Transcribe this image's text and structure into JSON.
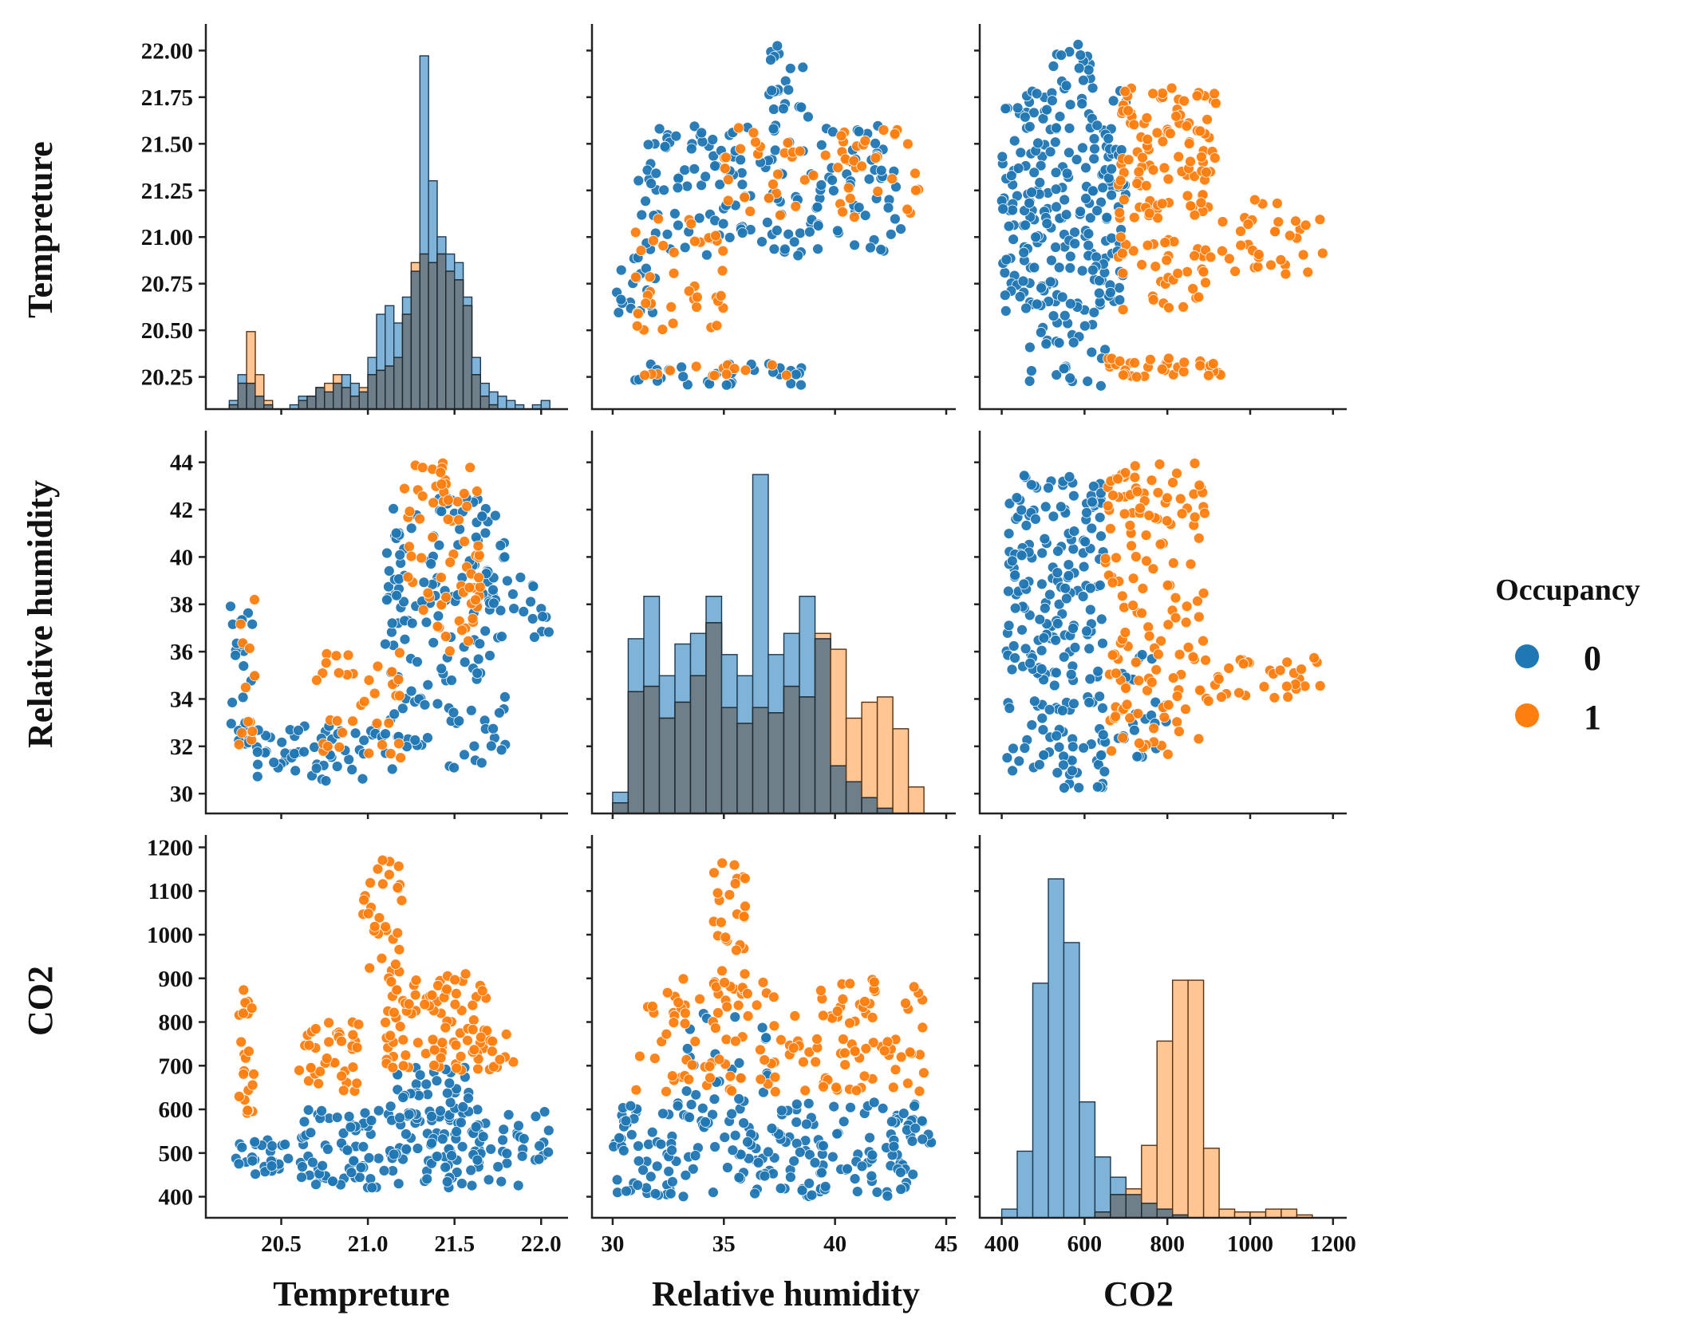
{
  "colors": {
    "class_0": "#1f77b4",
    "class_1": "#ff7f0e"
  },
  "legend": {
    "title": "Occupancy",
    "items": [
      {
        "label": "0",
        "color": "#1f77b4"
      },
      {
        "label": "1",
        "color": "#ff7f0e"
      }
    ]
  },
  "chart_data": {
    "type": "scatter",
    "description_kind": "pairplot",
    "variables": [
      "Tempreture",
      "Relative humidity",
      "CO2"
    ],
    "hue": "Occupancy",
    "hue_levels": [
      "0",
      "1"
    ],
    "axes": {
      "Tempreture": {
        "label": "Tempreture",
        "range": [
          20.12,
          22.1
        ],
        "diag_ticks": [
          "20.25",
          "20.50",
          "20.75",
          "21.00",
          "21.25",
          "21.50",
          "21.75",
          "22.00"
        ],
        "x_ticks": [
          "20.5",
          "21.0",
          "21.5",
          "22.0"
        ]
      },
      "Relative humidity": {
        "label": "Relative humidity",
        "range": [
          29.5,
          45
        ],
        "y_ticks": [
          "30",
          "32",
          "34",
          "36",
          "38",
          "40",
          "42",
          "44"
        ],
        "x_ticks": [
          "30",
          "35",
          "40",
          "45"
        ]
      },
      "CO2": {
        "label": "CO2",
        "range": [
          370,
          1210
        ],
        "y_ticks": [
          "400",
          "500",
          "600",
          "700",
          "800",
          "900",
          "1000",
          "1100",
          "1200"
        ],
        "x_ticks": [
          "400",
          "600",
          "800",
          "1000",
          "1200"
        ]
      }
    },
    "histograms": {
      "Tempreture": {
        "bins": [
          20.2,
          20.25,
          20.3,
          20.35,
          20.4,
          20.45,
          20.5,
          20.55,
          20.6,
          20.65,
          20.7,
          20.75,
          20.8,
          20.85,
          20.9,
          20.95,
          21.0,
          21.05,
          21.1,
          21.15,
          21.2,
          21.25,
          21.3,
          21.35,
          21.4,
          21.45,
          21.5,
          21.55,
          21.6,
          21.65,
          21.7,
          21.75,
          21.8,
          21.85,
          21.9,
          21.95,
          22.0,
          22.05
        ],
        "counts_0": [
          2,
          8,
          6,
          3,
          1,
          0,
          0,
          1,
          3,
          3,
          5,
          4,
          6,
          8,
          6,
          4,
          12,
          22,
          24,
          20,
          26,
          32,
          82,
          53,
          40,
          36,
          34,
          26,
          12,
          6,
          4,
          3,
          2,
          1,
          0,
          1,
          2
        ],
        "counts_1": [
          1,
          6,
          18,
          8,
          2,
          0,
          0,
          0,
          2,
          3,
          5,
          6,
          8,
          5,
          3,
          5,
          8,
          9,
          10,
          12,
          22,
          34,
          36,
          34,
          36,
          32,
          30,
          24,
          8,
          3,
          1,
          0,
          0,
          0,
          0,
          0,
          0
        ]
      },
      "Relative humidity": {
        "bins": [
          30,
          30.7,
          31.4,
          32.1,
          32.8,
          33.5,
          34.2,
          34.9,
          35.6,
          36.3,
          37.0,
          37.7,
          38.4,
          39.1,
          39.8,
          40.5,
          41.2,
          41.9,
          42.6,
          43.3,
          44.0,
          44.7
        ],
        "counts_0": [
          4,
          33,
          41,
          26,
          32,
          34,
          41,
          30,
          26,
          64,
          30,
          34,
          41,
          33,
          9,
          6,
          3,
          1,
          0,
          0,
          0
        ],
        "counts_1": [
          2,
          23,
          24,
          18,
          21,
          26,
          36,
          20,
          17,
          20,
          19,
          24,
          22,
          34,
          31,
          18,
          21,
          22,
          16,
          5,
          0
        ]
      },
      "CO2": {
        "bins": [
          400,
          437.5,
          475,
          512.5,
          550,
          587.5,
          625,
          662.5,
          700,
          737.5,
          775,
          812.5,
          850,
          887.5,
          925,
          962.5,
          1000,
          1037.5,
          1075,
          1112.5,
          1150
        ],
        "counts_0": [
          3,
          23,
          81,
          117,
          95,
          40,
          21,
          14,
          8,
          5,
          3,
          1,
          0,
          0,
          0,
          0,
          0,
          0,
          0,
          0
        ],
        "counts_1": [
          0,
          0,
          0,
          0,
          0,
          0,
          2,
          8,
          10,
          25,
          61,
          82,
          82,
          24,
          3,
          2,
          2,
          3,
          3,
          1
        ]
      }
    },
    "scatter_clusters": {
      "temp_co2": [
        {
          "cls": 0,
          "x": [
            20.2,
            20.55
          ],
          "y": [
            450,
            530
          ],
          "n": 30
        },
        {
          "cls": 0,
          "x": [
            20.6,
            21.9
          ],
          "y": [
            420,
            600
          ],
          "n": 170
        },
        {
          "cls": 0,
          "x": [
            21.1,
            21.6
          ],
          "y": [
            580,
            700
          ],
          "n": 35
        },
        {
          "cls": 0,
          "x": [
            21.9,
            22.05
          ],
          "y": [
            480,
            620
          ],
          "n": 10
        },
        {
          "cls": 1,
          "x": [
            20.25,
            20.35
          ],
          "y": [
            590,
            880
          ],
          "n": 22
        },
        {
          "cls": 1,
          "x": [
            20.6,
            20.95
          ],
          "y": [
            640,
            800
          ],
          "n": 38
        },
        {
          "cls": 1,
          "x": [
            20.95,
            21.2
          ],
          "y": [
            900,
            1180
          ],
          "n": 30
        },
        {
          "cls": 1,
          "x": [
            21.1,
            21.7
          ],
          "y": [
            690,
            920
          ],
          "n": 95
        },
        {
          "cls": 1,
          "x": [
            21.7,
            21.85
          ],
          "y": [
            680,
            780
          ],
          "n": 10
        }
      ],
      "rh_co2": [
        {
          "cls": 0,
          "x": [
            30,
            44
          ],
          "y": [
            400,
            620
          ],
          "n": 210
        },
        {
          "cls": 0,
          "x": [
            33,
            37
          ],
          "y": [
            600,
            820
          ],
          "n": 25
        },
        {
          "cls": 0,
          "x": [
            43.5,
            44.5
          ],
          "y": [
            520,
            580
          ],
          "n": 6
        },
        {
          "cls": 1,
          "x": [
            31,
            44
          ],
          "y": [
            640,
            900
          ],
          "n": 150
        },
        {
          "cls": 1,
          "x": [
            34.5,
            36
          ],
          "y": [
            880,
            1180
          ],
          "n": 28
        }
      ],
      "temp_rh": [
        {
          "cls": 0,
          "x": [
            20.2,
            20.35
          ],
          "y": [
            32,
            38
          ],
          "n": 25
        },
        {
          "cls": 0,
          "x": [
            20.35,
            21.1
          ],
          "y": [
            30.5,
            33
          ],
          "n": 60
        },
        {
          "cls": 0,
          "x": [
            21.1,
            21.8
          ],
          "y": [
            31,
            42.5
          ],
          "n": 160
        },
        {
          "cls": 0,
          "x": [
            21.6,
            22.05
          ],
          "y": [
            36.5,
            39.5
          ],
          "n": 25
        },
        {
          "cls": 1,
          "x": [
            20.25,
            20.35
          ],
          "y": [
            32,
            38.5
          ],
          "n": 12
        },
        {
          "cls": 1,
          "x": [
            20.7,
            21.2
          ],
          "y": [
            31.5,
            36
          ],
          "n": 35
        },
        {
          "cls": 1,
          "x": [
            21.2,
            21.65
          ],
          "y": [
            36,
            44
          ],
          "n": 70
        }
      ],
      "co2_rh": [
        {
          "cls": 0,
          "x": [
            410,
            650
          ],
          "y": [
            30.2,
            43.5
          ],
          "n": 230
        },
        {
          "cls": 0,
          "x": [
            650,
            800
          ],
          "y": [
            31.5,
            36
          ],
          "n": 25
        },
        {
          "cls": 1,
          "x": [
            650,
            900
          ],
          "y": [
            31.6,
            44
          ],
          "n": 150
        },
        {
          "cls": 1,
          "x": [
            900,
            1180
          ],
          "y": [
            34,
            35.8
          ],
          "n": 30
        }
      ],
      "rh_temp": [
        {
          "cls": 0,
          "x": [
            30,
            32
          ],
          "y": [
            20.55,
            20.9
          ],
          "n": 18
        },
        {
          "cls": 0,
          "x": [
            31,
            38.5
          ],
          "y": [
            20.2,
            20.32
          ],
          "n": 30
        },
        {
          "cls": 0,
          "x": [
            31,
            43
          ],
          "y": [
            20.9,
            21.6
          ],
          "n": 170
        },
        {
          "cls": 0,
          "x": [
            37,
            39
          ],
          "y": [
            21.6,
            22.05
          ],
          "n": 20
        },
        {
          "cls": 1,
          "x": [
            31,
            38
          ],
          "y": [
            20.25,
            20.32
          ],
          "n": 15
        },
        {
          "cls": 1,
          "x": [
            31,
            35
          ],
          "y": [
            20.5,
            21.1
          ],
          "n": 40
        },
        {
          "cls": 1,
          "x": [
            35,
            44
          ],
          "y": [
            21.1,
            21.6
          ],
          "n": 60
        }
      ],
      "co2_temp": [
        {
          "cls": 0,
          "x": [
            400,
            700
          ],
          "y": [
            20.6,
            21.8
          ],
          "n": 230
        },
        {
          "cls": 0,
          "x": [
            450,
            650
          ],
          "y": [
            20.2,
            20.6
          ],
          "n": 30
        },
        {
          "cls": 0,
          "x": [
            520,
            620
          ],
          "y": [
            21.8,
            22.05
          ],
          "n": 15
        },
        {
          "cls": 1,
          "x": [
            680,
            920
          ],
          "y": [
            21.1,
            21.8
          ],
          "n": 110
        },
        {
          "cls": 1,
          "x": [
            680,
            900
          ],
          "y": [
            20.6,
            21.0
          ],
          "n": 40
        },
        {
          "cls": 1,
          "x": [
            900,
            1180
          ],
          "y": [
            20.8,
            21.2
          ],
          "n": 35
        },
        {
          "cls": 1,
          "x": [
            650,
            940
          ],
          "y": [
            20.25,
            20.35
          ],
          "n": 35
        }
      ]
    }
  }
}
